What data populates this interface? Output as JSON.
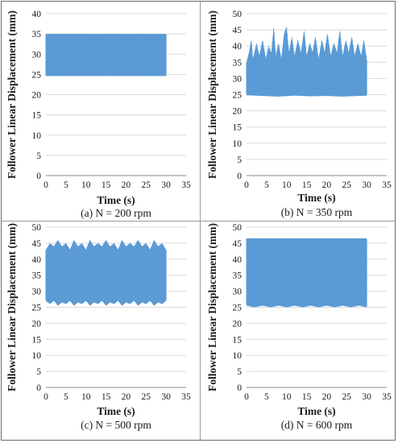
{
  "chart_data": [
    {
      "type": "area",
      "xlabel": "Time (s)",
      "ylabel": "Follower Linear Displacement (mm)",
      "caption": "(a) N = 200 rpm",
      "xlim": [
        0,
        35
      ],
      "ylim": [
        0,
        40
      ],
      "xticks": [
        0,
        5,
        10,
        15,
        20,
        25,
        30,
        35
      ],
      "yticks": [
        0,
        5,
        10,
        15,
        20,
        25,
        30,
        35,
        40
      ],
      "grid": "horizontal",
      "series_color": "#5b9bd5",
      "x_range": [
        0,
        30
      ],
      "upper_envelope": [
        [
          0,
          35
        ],
        [
          30,
          35
        ]
      ],
      "lower_envelope": [
        [
          0,
          24.6
        ],
        [
          30,
          24.6
        ]
      ]
    },
    {
      "type": "area",
      "xlabel": "Time (s)",
      "ylabel": "Follower Linear Displacement (mm)",
      "caption": "(b) N = 350 rpm",
      "xlim": [
        0,
        35
      ],
      "ylim": [
        0,
        50
      ],
      "xticks": [
        0,
        5,
        10,
        15,
        20,
        25,
        30,
        35
      ],
      "yticks": [
        0,
        5,
        10,
        15,
        20,
        25,
        30,
        35,
        40,
        45,
        50
      ],
      "grid": "horizontal",
      "series_color": "#5b9bd5",
      "x_range": [
        0,
        30
      ],
      "upper_envelope": [
        [
          0,
          35
        ],
        [
          0.6,
          38
        ],
        [
          1.2,
          42
        ],
        [
          1.6,
          36
        ],
        [
          2.5,
          41
        ],
        [
          3.2,
          37
        ],
        [
          4.0,
          42
        ],
        [
          4.8,
          36
        ],
        [
          5.5,
          40
        ],
        [
          6.2,
          38
        ],
        [
          6.8,
          46
        ],
        [
          7.3,
          37
        ],
        [
          8.0,
          41
        ],
        [
          8.7,
          36
        ],
        [
          9.4,
          44
        ],
        [
          10.0,
          46
        ],
        [
          10.6,
          38
        ],
        [
          11.3,
          43
        ],
        [
          12.0,
          37
        ],
        [
          12.8,
          42
        ],
        [
          13.6,
          38
        ],
        [
          14.4,
          45
        ],
        [
          15.0,
          37
        ],
        [
          15.8,
          41
        ],
        [
          16.5,
          38
        ],
        [
          17.2,
          43
        ],
        [
          18.0,
          36
        ],
        [
          18.8,
          42
        ],
        [
          19.5,
          38
        ],
        [
          20.2,
          44
        ],
        [
          21.0,
          37
        ],
        [
          21.8,
          41
        ],
        [
          22.6,
          38
        ],
        [
          23.3,
          45
        ],
        [
          24.0,
          37
        ],
        [
          24.8,
          42
        ],
        [
          25.5,
          38
        ],
        [
          26.3,
          43
        ],
        [
          27.0,
          37
        ],
        [
          27.8,
          41
        ],
        [
          28.6,
          37
        ],
        [
          29.3,
          42
        ],
        [
          30,
          36
        ]
      ],
      "lower_envelope": [
        [
          0,
          24.8
        ],
        [
          4,
          24.6
        ],
        [
          8,
          24.4
        ],
        [
          12,
          24.7
        ],
        [
          16,
          24.5
        ],
        [
          20,
          24.6
        ],
        [
          24,
          24.4
        ],
        [
          28,
          24.6
        ],
        [
          30,
          24.7
        ]
      ]
    },
    {
      "type": "area",
      "xlabel": "Time (s)",
      "ylabel": "Follower Linear Displacement (mm)",
      "caption": "(c) N = 500 rpm",
      "xlim": [
        0,
        35
      ],
      "ylim": [
        0,
        50
      ],
      "xticks": [
        0,
        5,
        10,
        15,
        20,
        25,
        30,
        35
      ],
      "yticks": [
        0,
        5,
        10,
        15,
        20,
        25,
        30,
        35,
        40,
        45,
        50
      ],
      "grid": "horizontal",
      "series_color": "#5b9bd5",
      "x_range": [
        0,
        30
      ],
      "upper_envelope": [
        [
          0,
          43
        ],
        [
          1,
          45
        ],
        [
          2,
          44
        ],
        [
          3,
          46
        ],
        [
          4,
          44
        ],
        [
          5,
          45
        ],
        [
          6,
          43
        ],
        [
          7,
          46
        ],
        [
          8,
          44
        ],
        [
          9,
          45
        ],
        [
          10,
          43
        ],
        [
          11,
          46
        ],
        [
          12,
          44
        ],
        [
          13,
          45
        ],
        [
          14,
          44
        ],
        [
          15,
          46
        ],
        [
          16,
          44
        ],
        [
          17,
          45
        ],
        [
          18,
          43
        ],
        [
          19,
          46
        ],
        [
          20,
          44
        ],
        [
          21,
          45
        ],
        [
          22,
          44
        ],
        [
          23,
          46
        ],
        [
          24,
          44
        ],
        [
          25,
          45
        ],
        [
          26,
          43
        ],
        [
          27,
          46
        ],
        [
          28,
          44
        ],
        [
          29,
          45
        ],
        [
          30,
          43
        ]
      ],
      "lower_envelope": [
        [
          0,
          27
        ],
        [
          1,
          26
        ],
        [
          2,
          27
        ],
        [
          3,
          25.5
        ],
        [
          4,
          26.5
        ],
        [
          5,
          26
        ],
        [
          6,
          27
        ],
        [
          7,
          25.5
        ],
        [
          8,
          26.5
        ],
        [
          9,
          26
        ],
        [
          10,
          27
        ],
        [
          11,
          25.5
        ],
        [
          12,
          26.5
        ],
        [
          13,
          26
        ],
        [
          14,
          27
        ],
        [
          15,
          25.5
        ],
        [
          16,
          26.5
        ],
        [
          17,
          26
        ],
        [
          18,
          27
        ],
        [
          19,
          25.5
        ],
        [
          20,
          26.5
        ],
        [
          21,
          26
        ],
        [
          22,
          27
        ],
        [
          23,
          25.5
        ],
        [
          24,
          26.5
        ],
        [
          25,
          26
        ],
        [
          26,
          27
        ],
        [
          27,
          25.5
        ],
        [
          28,
          26.5
        ],
        [
          29,
          26
        ],
        [
          30,
          27
        ]
      ]
    },
    {
      "type": "area",
      "xlabel": "Time (s)",
      "ylabel": "Follower Linear Displacement (mm)",
      "caption": "(d) N = 600 rpm",
      "xlim": [
        0,
        35
      ],
      "ylim": [
        0,
        50
      ],
      "xticks": [
        0,
        5,
        10,
        15,
        20,
        25,
        30,
        35
      ],
      "yticks": [
        0,
        5,
        10,
        15,
        20,
        25,
        30,
        35,
        40,
        45,
        50
      ],
      "grid": "horizontal",
      "series_color": "#5b9bd5",
      "x_range": [
        0,
        30
      ],
      "upper_envelope": [
        [
          0,
          46.5
        ],
        [
          5,
          46.5
        ],
        [
          10,
          46.5
        ],
        [
          15,
          46.5
        ],
        [
          20,
          46.5
        ],
        [
          25,
          46.5
        ],
        [
          30,
          46.5
        ]
      ],
      "lower_envelope": [
        [
          0,
          25.5
        ],
        [
          2,
          25
        ],
        [
          4,
          25.5
        ],
        [
          6,
          25
        ],
        [
          8,
          25.5
        ],
        [
          10,
          25
        ],
        [
          12,
          25.5
        ],
        [
          14,
          25
        ],
        [
          16,
          25.5
        ],
        [
          18,
          25
        ],
        [
          20,
          25.5
        ],
        [
          22,
          25
        ],
        [
          24,
          25.5
        ],
        [
          26,
          25
        ],
        [
          28,
          25.5
        ],
        [
          30,
          25
        ]
      ]
    }
  ]
}
